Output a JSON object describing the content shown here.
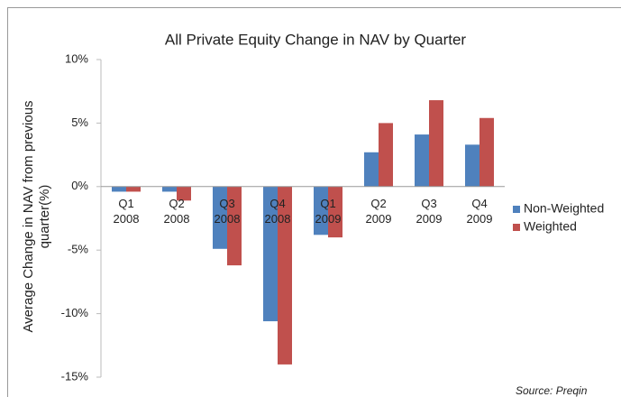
{
  "chart_data": {
    "type": "bar",
    "title": "All Private Equity Change in NAV by Quarter",
    "ylabel": [
      "Average Change in NAV from previous",
      "quarter(%)"
    ],
    "categories": [
      [
        "Q1",
        "2008"
      ],
      [
        "Q2",
        "2008"
      ],
      [
        "Q3",
        "2008"
      ],
      [
        "Q4",
        "2008"
      ],
      [
        "Q1",
        "2009"
      ],
      [
        "Q2",
        "2009"
      ],
      [
        "Q3",
        "2009"
      ],
      [
        "Q4",
        "2009"
      ]
    ],
    "series": [
      {
        "name": "Non-Weighted",
        "color": "#4f81bd",
        "values": [
          -0.4,
          -0.4,
          -4.9,
          -10.6,
          -3.8,
          2.7,
          4.1,
          3.3
        ]
      },
      {
        "name": "Weighted",
        "color": "#c0504d",
        "values": [
          -0.4,
          -1.1,
          -6.2,
          -14.0,
          -4.0,
          5.0,
          6.8,
          5.4
        ]
      }
    ],
    "ylim": [
      -15,
      10
    ],
    "yticks": [
      {
        "value": -15,
        "label": "-15%"
      },
      {
        "value": -10,
        "label": "-10%"
      },
      {
        "value": -5,
        "label": "-5%"
      },
      {
        "value": 0,
        "label": "0%"
      },
      {
        "value": 5,
        "label": "5%"
      },
      {
        "value": 10,
        "label": "10%"
      }
    ],
    "legend": "right",
    "source": "Source: Preqin"
  }
}
